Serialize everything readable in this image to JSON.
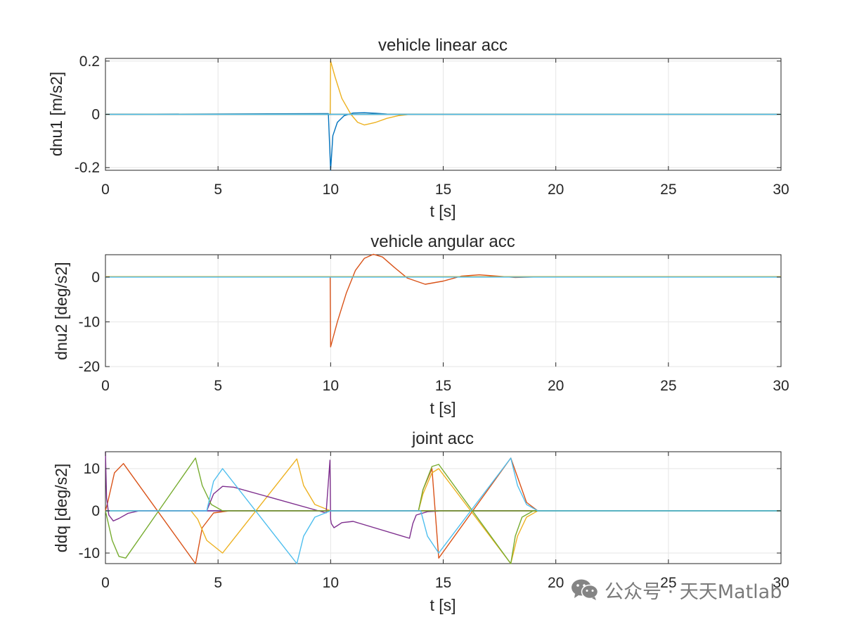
{
  "watermark": {
    "text": "公众号 · 天天Matlab",
    "icon": "wechat-icon"
  },
  "colors": {
    "blue": "#0072BD",
    "orange": "#D95319",
    "yellow": "#EDB120",
    "purple": "#7E2F8E",
    "green": "#77AC30",
    "cyan": "#4DBEEE",
    "grid": "#e6e6e6",
    "axes": "#262626"
  },
  "chart_data": [
    {
      "type": "line",
      "title": "vehicle linear acc",
      "xlabel": "t [s]",
      "ylabel": "dnu1 [m/s2]",
      "xlim": [
        0,
        30
      ],
      "ylim": [
        -0.21,
        0.21
      ],
      "xticks": [
        0,
        5,
        10,
        15,
        20,
        25,
        30
      ],
      "yticks": [
        -0.2,
        0,
        0.2
      ],
      "ytick_labels": [
        "-0.2",
        "0",
        "0.2"
      ],
      "grid": true,
      "series": [
        {
          "color": "blue",
          "x": [
            0,
            9.9,
            10,
            10.1,
            10.3,
            10.6,
            11,
            11.5,
            12,
            12.5,
            13,
            30
          ],
          "y": [
            0,
            0.003,
            -0.21,
            -0.08,
            -0.03,
            -0.005,
            0.005,
            0.006,
            0.004,
            0.001,
            0,
            0
          ]
        },
        {
          "color": "orange",
          "x": [
            0,
            30
          ],
          "y": [
            0,
            0
          ]
        },
        {
          "color": "yellow",
          "x": [
            0,
            9.98,
            10,
            10.2,
            10.5,
            10.9,
            11.2,
            11.5,
            12,
            12.5,
            13,
            13.5,
            14,
            30
          ],
          "y": [
            0,
            0,
            0.2,
            0.14,
            0.06,
            0.0,
            -0.03,
            -0.04,
            -0.03,
            -0.015,
            -0.005,
            0,
            0,
            0
          ]
        },
        {
          "color": "purple",
          "x": [
            0,
            30
          ],
          "y": [
            0,
            0
          ]
        },
        {
          "color": "green",
          "x": [
            0,
            30
          ],
          "y": [
            0,
            0
          ]
        },
        {
          "color": "cyan",
          "x": [
            0,
            30
          ],
          "y": [
            0,
            0
          ]
        }
      ]
    },
    {
      "type": "line",
      "title": "vehicle angular acc",
      "xlabel": "t [s]",
      "ylabel": "dnu2 [deg/s2]",
      "xlim": [
        0,
        30
      ],
      "ylim": [
        -20,
        5
      ],
      "xticks": [
        0,
        5,
        10,
        15,
        20,
        25,
        30
      ],
      "yticks": [
        -20,
        -10,
        0
      ],
      "ytick_labels": [
        "-20",
        "-10",
        "0"
      ],
      "grid": true,
      "series": [
        {
          "color": "blue",
          "x": [
            0,
            30
          ],
          "y": [
            0,
            0
          ]
        },
        {
          "color": "orange",
          "x": [
            0,
            9.98,
            10,
            10.3,
            10.7,
            11.1,
            11.5,
            11.9,
            12.3,
            12.8,
            13.4,
            14.2,
            15,
            15.8,
            16.6,
            17.4,
            18.2,
            19,
            30
          ],
          "y": [
            0,
            0,
            -15.6,
            -10,
            -3.5,
            1.5,
            4.2,
            5.1,
            4.5,
            2.3,
            -0.2,
            -1.6,
            -0.9,
            0.2,
            0.5,
            0.2,
            -0.1,
            0,
            0
          ]
        },
        {
          "color": "yellow",
          "x": [
            0,
            30
          ],
          "y": [
            0.1,
            0.1
          ]
        },
        {
          "color": "purple",
          "x": [
            0,
            30
          ],
          "y": [
            0,
            0
          ]
        },
        {
          "color": "green",
          "x": [
            0,
            30
          ],
          "y": [
            0,
            0
          ]
        },
        {
          "color": "cyan",
          "x": [
            0,
            30
          ],
          "y": [
            0,
            0
          ]
        }
      ]
    },
    {
      "type": "line",
      "title": "joint acc",
      "xlabel": "t [s]",
      "ylabel": "ddq [deg/s2]",
      "xlim": [
        0,
        30
      ],
      "ylim": [
        -12.5,
        14
      ],
      "xticks": [
        0,
        5,
        10,
        15,
        20,
        25,
        30
      ],
      "yticks": [
        -10,
        0,
        10
      ],
      "ytick_labels": [
        "-10",
        "0",
        "10"
      ],
      "grid": true,
      "series": [
        {
          "color": "blue",
          "x": [
            0,
            30
          ],
          "y": [
            0,
            0
          ]
        },
        {
          "color": "orange",
          "x": [
            0,
            0.1,
            0.4,
            0.8,
            4.0,
            4.3,
            4.8,
            5.5,
            30
          ],
          "y": [
            0,
            2,
            9,
            11.2,
            -12.5,
            -4,
            -0.5,
            0,
            0
          ]
        },
        {
          "color": "orange",
          "x": [
            13.9,
            14.1,
            14.5,
            14.8,
            18.0,
            18.3,
            18.7,
            19.2,
            30
          ],
          "y": [
            0,
            5,
            10,
            -11.2,
            12.5,
            8,
            2,
            0,
            0
          ]
        },
        {
          "color": "yellow",
          "x": [
            0,
            3.8,
            4.1,
            4.5,
            5.2,
            8.5,
            8.8,
            9.3,
            10,
            30
          ],
          "y": [
            0,
            0,
            -2,
            -7,
            -10,
            12.3,
            6,
            1.5,
            0,
            0
          ]
        },
        {
          "color": "yellow",
          "x": [
            13.9,
            14.1,
            14.5,
            14.8,
            18.0,
            18.3,
            18.7,
            19.2,
            30
          ],
          "y": [
            0,
            4,
            9,
            10,
            -12.5,
            -6,
            -1.5,
            0,
            0
          ]
        },
        {
          "color": "purple",
          "x": [
            0,
            0.05,
            0.15,
            0.35,
            0.6,
            1.0,
            1.5,
            30
          ],
          "y": [
            14,
            3,
            -1,
            -2.4,
            -1.8,
            -0.6,
            0,
            0
          ]
        },
        {
          "color": "purple",
          "x": [
            4.5,
            4.8,
            5.2,
            5.7,
            9.8,
            9.97,
            10.0,
            10.03,
            10.15,
            10.3,
            10.5,
            11,
            13.5,
            13.65,
            13.8,
            14.3,
            15,
            30
          ],
          "y": [
            0,
            4,
            5.8,
            5.6,
            -0.5,
            12,
            -2,
            -3,
            -4,
            -3.5,
            -2.8,
            -2.5,
            -6.5,
            -3,
            -1,
            -0.2,
            0,
            0
          ]
        },
        {
          "color": "green",
          "x": [
            0,
            0.3,
            0.6,
            0.9,
            4.0,
            4.3,
            4.7,
            5.2,
            30
          ],
          "y": [
            0,
            -7,
            -10.8,
            -11.2,
            12.5,
            6,
            1.5,
            0,
            0
          ]
        },
        {
          "color": "green",
          "x": [
            13.9,
            14.1,
            14.5,
            14.8,
            18.0,
            18.2,
            18.5,
            19,
            30
          ],
          "y": [
            0,
            5,
            10.5,
            11,
            -12.5,
            -6,
            -1.5,
            0,
            0
          ]
        },
        {
          "color": "cyan",
          "x": [
            0,
            4.5,
            4.8,
            5.2,
            8.5,
            8.8,
            9.3,
            10,
            14.0,
            14.3,
            14.8,
            18.0,
            18.3,
            18.7,
            19.2,
            30
          ],
          "y": [
            0,
            0,
            7,
            10,
            -12.5,
            -6,
            -1.5,
            0,
            0,
            -6,
            -10,
            12.5,
            6,
            1.5,
            0,
            0
          ]
        }
      ]
    }
  ]
}
